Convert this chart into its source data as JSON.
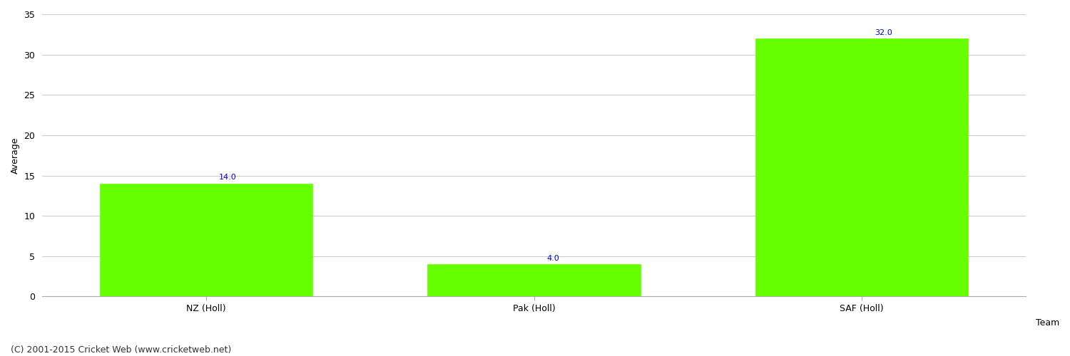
{
  "categories": [
    "NZ (Holl)",
    "Pak (Holl)",
    "SAF (Holl)"
  ],
  "values": [
    14.0,
    4.0,
    32.0
  ],
  "bar_color": "#66ff00",
  "bar_edgecolor": "#66ff00",
  "xlabel": "Team",
  "ylabel": "Average",
  "ylim": [
    0,
    35
  ],
  "yticks": [
    0,
    5,
    10,
    15,
    20,
    25,
    30,
    35
  ],
  "annotation_color": "#0000cc",
  "annotation_fontsize": 8,
  "grid_color": "#cccccc",
  "background_color": "#ffffff",
  "footer_text": "(C) 2001-2015 Cricket Web (www.cricketweb.net)",
  "footer_fontsize": 9,
  "xlabel_fontsize": 9,
  "ylabel_fontsize": 9,
  "tick_fontsize": 9,
  "bar_width": 0.65
}
